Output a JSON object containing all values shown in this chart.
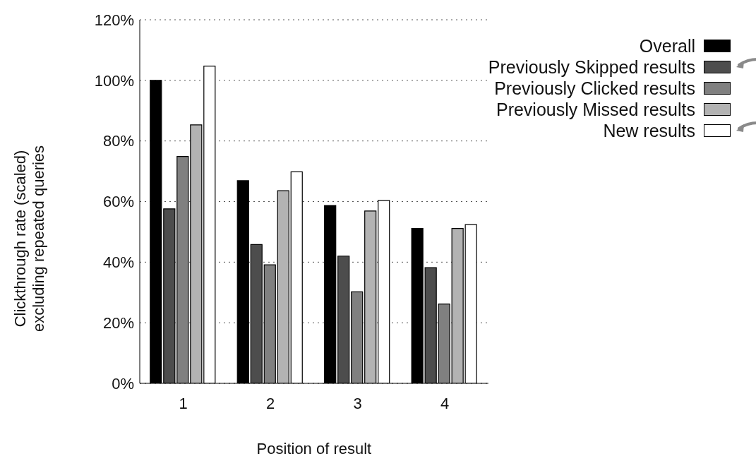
{
  "chart_data": {
    "type": "bar",
    "xlabel": "Position of result",
    "ylabel": "Clickthrough rate (scaled)\nexcluding repeated queries",
    "categories": [
      "1",
      "2",
      "3",
      "4"
    ],
    "series": [
      {
        "name": "Overall",
        "color": "#000000",
        "values": [
          100,
          66.9,
          58.7,
          51.1
        ]
      },
      {
        "name": "Previously Skipped results",
        "color": "#4d4d4d",
        "values": [
          57.6,
          45.8,
          42,
          38.2
        ]
      },
      {
        "name": "Previously Clicked results",
        "color": "#808080",
        "values": [
          74.9,
          39.1,
          30.2,
          26.2
        ]
      },
      {
        "name": "Previously Missed results",
        "color": "#b3b3b3",
        "values": [
          85.3,
          63.6,
          56.9,
          51.1
        ]
      },
      {
        "name": "New results",
        "color": "#ffffff",
        "values": [
          104.7,
          69.8,
          60.4,
          52.4
        ]
      }
    ],
    "ylim": [
      0,
      120
    ],
    "yticks": [
      {
        "value": 0,
        "label": "0%"
      },
      {
        "value": 20,
        "label": "20%"
      },
      {
        "value": 40,
        "label": "40%"
      },
      {
        "value": 60,
        "label": "60%"
      },
      {
        "value": 80,
        "label": "80%"
      },
      {
        "value": 100,
        "label": "100%"
      },
      {
        "value": 120,
        "label": "120%"
      }
    ],
    "grid": "y",
    "legend": "top right"
  }
}
